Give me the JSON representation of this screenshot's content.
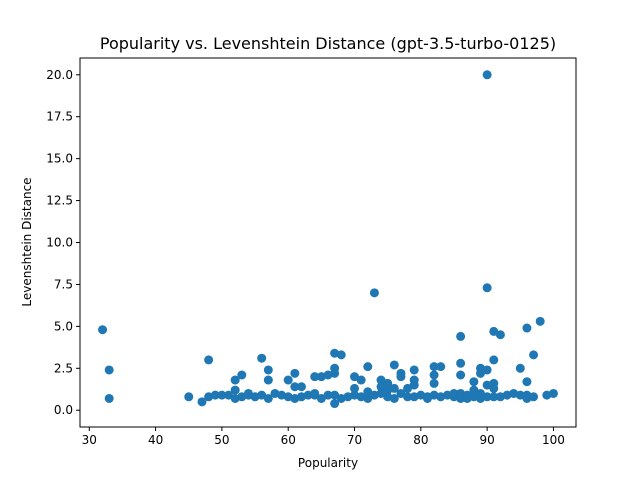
{
  "chart_data": {
    "type": "scatter",
    "title": "Popularity vs. Levenshtein Distance (gpt-3.5-turbo-0125)",
    "xlabel": "Popularity",
    "ylabel": "Levenshtein Distance",
    "xlim": [
      28.6,
      103.4
    ],
    "ylim": [
      -1.0,
      21.0
    ],
    "xticks": [
      30,
      40,
      50,
      60,
      70,
      80,
      90,
      100
    ],
    "xtick_labels": [
      "30",
      "40",
      "50",
      "60",
      "70",
      "80",
      "90",
      "100"
    ],
    "yticks": [
      0,
      2.5,
      5,
      7.5,
      10,
      12.5,
      15,
      17.5,
      20
    ],
    "ytick_labels": [
      "0.0",
      "2.5",
      "5.0",
      "7.5",
      "10.0",
      "12.5",
      "15.0",
      "17.5",
      "20.0"
    ],
    "grid": false,
    "marker_color": "#1f77b4",
    "points": [
      [
        32,
        4.8
      ],
      [
        33,
        2.4
      ],
      [
        33,
        0.7
      ],
      [
        45,
        0.8
      ],
      [
        47,
        0.5
      ],
      [
        48,
        0.8
      ],
      [
        48,
        3.0
      ],
      [
        49,
        0.9
      ],
      [
        50,
        0.9
      ],
      [
        51,
        0.9
      ],
      [
        52,
        0.7
      ],
      [
        52,
        1.2
      ],
      [
        52,
        1.8
      ],
      [
        53,
        0.8
      ],
      [
        53,
        2.1
      ],
      [
        54,
        0.9
      ],
      [
        54,
        1.0
      ],
      [
        55,
        0.8
      ],
      [
        56,
        3.1
      ],
      [
        56,
        0.9
      ],
      [
        57,
        2.4
      ],
      [
        57,
        1.8
      ],
      [
        57,
        0.7
      ],
      [
        58,
        1.0
      ],
      [
        59,
        0.9
      ],
      [
        60,
        0.8
      ],
      [
        60,
        1.8
      ],
      [
        61,
        2.2
      ],
      [
        61,
        1.4
      ],
      [
        61,
        0.7
      ],
      [
        62,
        1.4
      ],
      [
        62,
        0.8
      ],
      [
        63,
        0.9
      ],
      [
        64,
        2.0
      ],
      [
        64,
        0.9
      ],
      [
        64,
        1.0
      ],
      [
        65,
        2.0
      ],
      [
        65,
        0.7
      ],
      [
        66,
        2.1
      ],
      [
        66,
        0.9
      ],
      [
        67,
        3.4
      ],
      [
        67,
        2.5
      ],
      [
        67,
        2.2
      ],
      [
        67,
        0.9
      ],
      [
        67,
        0.4
      ],
      [
        68,
        3.3
      ],
      [
        68,
        0.7
      ],
      [
        69,
        0.8
      ],
      [
        70,
        2.0
      ],
      [
        70,
        1.3
      ],
      [
        70,
        0.9
      ],
      [
        71,
        1.8
      ],
      [
        71,
        0.8
      ],
      [
        72,
        2.6
      ],
      [
        72,
        1.1
      ],
      [
        72,
        0.7
      ],
      [
        73,
        7.0
      ],
      [
        73,
        0.9
      ],
      [
        74,
        1.8
      ],
      [
        74,
        1.4
      ],
      [
        74,
        1.0
      ],
      [
        75,
        1.6
      ],
      [
        75,
        1.2
      ],
      [
        75,
        0.8
      ],
      [
        76,
        2.7
      ],
      [
        76,
        1.3
      ],
      [
        76,
        0.7
      ],
      [
        77,
        2.2
      ],
      [
        77,
        2.0
      ],
      [
        77,
        1.0
      ],
      [
        78,
        1.3
      ],
      [
        78,
        0.8
      ],
      [
        79,
        2.4
      ],
      [
        79,
        1.8
      ],
      [
        79,
        1.5
      ],
      [
        79,
        0.8
      ],
      [
        80,
        0.9
      ],
      [
        81,
        0.7
      ],
      [
        81,
        0.8
      ],
      [
        82,
        2.6
      ],
      [
        82,
        2.1
      ],
      [
        82,
        1.6
      ],
      [
        82,
        0.9
      ],
      [
        83,
        2.6
      ],
      [
        83,
        0.8
      ],
      [
        84,
        0.9
      ],
      [
        85,
        0.8
      ],
      [
        85,
        1.0
      ],
      [
        86,
        4.4
      ],
      [
        86,
        2.8
      ],
      [
        86,
        2.1
      ],
      [
        86,
        0.7
      ],
      [
        86,
        1.0
      ],
      [
        87,
        0.9
      ],
      [
        87,
        0.7
      ],
      [
        88,
        1.7
      ],
      [
        88,
        0.8
      ],
      [
        88,
        1.2
      ],
      [
        89,
        2.5
      ],
      [
        89,
        2.2
      ],
      [
        89,
        0.7
      ],
      [
        89,
        1.0
      ],
      [
        90,
        20.0
      ],
      [
        90,
        7.3
      ],
      [
        90,
        2.4
      ],
      [
        90,
        1.5
      ],
      [
        90,
        0.8
      ],
      [
        91,
        4.7
      ],
      [
        91,
        3.0
      ],
      [
        91,
        1.6
      ],
      [
        91,
        1.3
      ],
      [
        91,
        0.8
      ],
      [
        92,
        4.5
      ],
      [
        92,
        0.8
      ],
      [
        93,
        0.9
      ],
      [
        94,
        1.0
      ],
      [
        95,
        2.5
      ],
      [
        95,
        0.9
      ],
      [
        96,
        4.9
      ],
      [
        96,
        1.7
      ],
      [
        96,
        0.9
      ],
      [
        96,
        0.7
      ],
      [
        97,
        3.3
      ],
      [
        97,
        0.8
      ],
      [
        98,
        5.3
      ],
      [
        99,
        0.9
      ],
      [
        100,
        1.0
      ]
    ]
  }
}
